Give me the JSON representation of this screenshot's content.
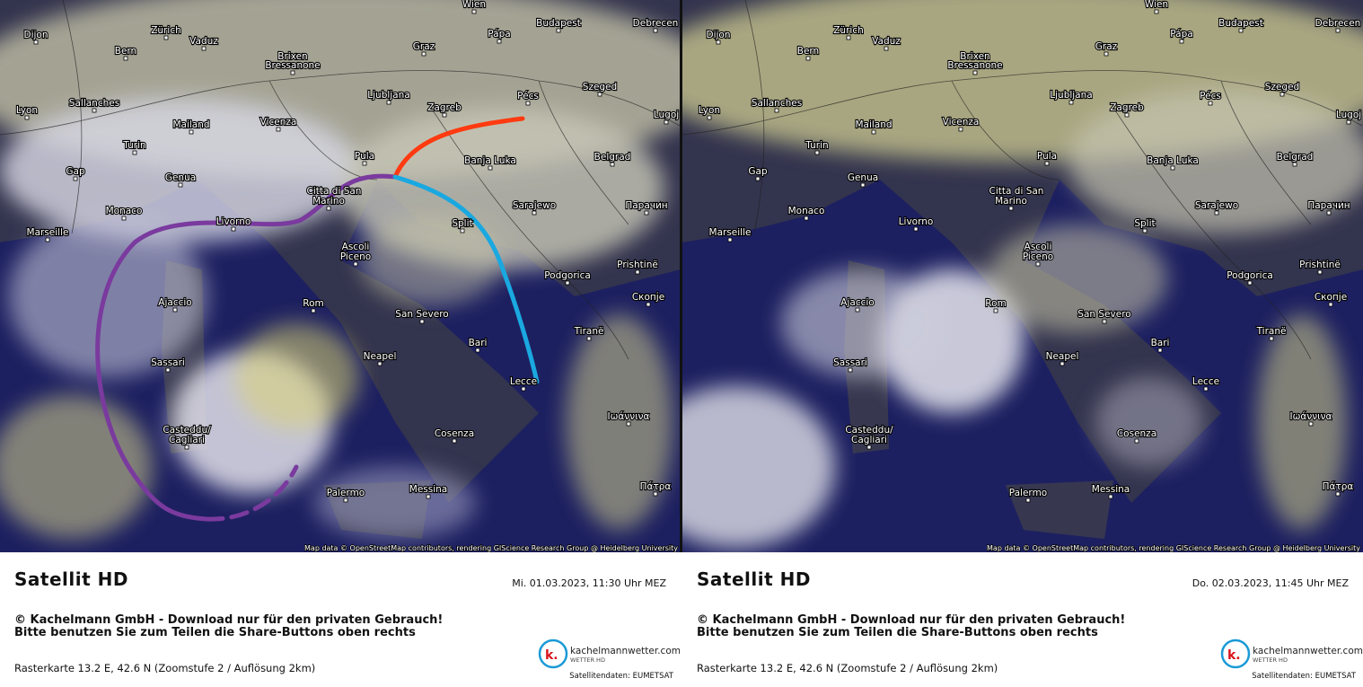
{
  "cities": [
    "Wien",
    "Budapest",
    "Debrecen",
    "Dijon",
    "Zürich",
    "Vaduz",
    "Bern",
    "Pápa",
    "Graz",
    "Brixen",
    "Bressanone",
    "Sallanches",
    "Lyon",
    "Ljubljana",
    "Pécs",
    "Szeged",
    "Zagreb",
    "Lugoj",
    "Mailand",
    "Vicenza",
    "Turin",
    "Pula",
    "Banja Luka",
    "Belgrad",
    "Gap",
    "Genua",
    "Citta di San",
    "Marino",
    "Sarajewo",
    "Парачин",
    "Monaco",
    "Livorno",
    "Split",
    "Marseille",
    "Ascoli",
    "Piceno",
    "Prishtinë",
    "Podgorica",
    "Скопје",
    "Ajaccio",
    "Rom",
    "San Severo",
    "Tiranë",
    "Bari",
    "Neapel",
    "Sassari",
    "Lecce",
    "Ιωάννινα",
    "Casteddu/",
    "Cagliari",
    "Cosenza",
    "Πάτρα",
    "Messina",
    "Palermo"
  ],
  "panels": [
    {
      "attribution": "Map data © OpenStreetMap contributors, rendering GIScience Research Group @ Heidelberg University",
      "caption": {
        "title": "Satellit HD",
        "date": "Mi. 01.03.2023, 11:30 Uhr MEZ",
        "copyright": "© Kachelmann GmbH - Download nur für den privaten Gebrauch!",
        "share": "Bitte benutzen Sie zum Teilen die Share-Buttons oben rechts",
        "raster": "Rasterkarte 13.2 E, 42.6 N (Zoomstufe 2 / Auflösung 2km)",
        "logo_mark": "k.",
        "logo_name": "kachelmannwetter.com",
        "logo_sub": "WETTER HD",
        "source": "Satellitendaten: EUMETSAT"
      }
    },
    {
      "attribution": "Map data © OpenStreetMap contributors, rendering GIScience Research Group @ Heidelberg University",
      "caption": {
        "title": "Satellit HD",
        "date": "Do. 02.03.2023, 11:45 Uhr MEZ",
        "copyright": "© Kachelmann GmbH - Download nur für den privaten Gebrauch!",
        "share": "Bitte benutzen Sie zum Teilen die Share-Buttons oben rechts",
        "raster": "Rasterkarte 13.2 E, 42.6 N (Zoomstufe 2 / Auflösung 2km)",
        "logo_mark": "k.",
        "logo_name": "kachelmannwetter.com",
        "logo_sub": "WETTER HD",
        "source": "Satellitendaten: EUMETSAT"
      }
    }
  ]
}
